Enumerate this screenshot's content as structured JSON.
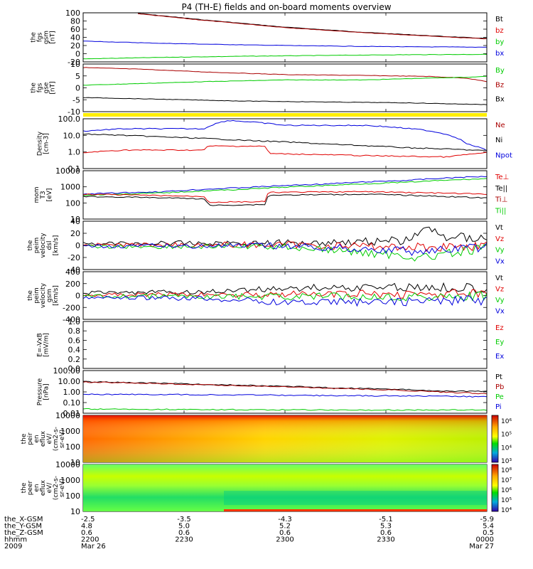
{
  "title": "P4 (TH-E) fields and on-board moments overview",
  "colors": {
    "red": "#e00000",
    "green": "#00cc00",
    "blue": "#0000dd",
    "black": "#000000",
    "yellow": "#ffee00",
    "darkred": "#aa0000"
  },
  "chart_data": [
    {
      "type": "line",
      "id": "fgs_gsm",
      "ylabel": [
        "the",
        "fgs",
        "gsm",
        "[nT]"
      ],
      "yticks": [
        "100",
        "80",
        "60",
        "40",
        "20",
        "0",
        "-20"
      ],
      "ylim": [
        -25,
        105
      ],
      "legend": [
        {
          "label": "Bt",
          "color": "black"
        },
        {
          "label": "bz",
          "color": "red"
        },
        {
          "label": "by",
          "color": "green"
        },
        {
          "label": "bx",
          "color": "blue"
        }
      ],
      "series": [
        {
          "color": "black",
          "x": [
            0.13,
            0.3,
            0.5,
            0.7,
            0.9,
            1.0
          ],
          "values": [
            104,
            86,
            67,
            53,
            42,
            37
          ]
        },
        {
          "color": "darkred",
          "x": [
            0.13,
            0.3,
            0.5,
            0.7,
            0.9,
            1.0
          ],
          "values": [
            103,
            85,
            66,
            52,
            41,
            36
          ]
        },
        {
          "color": "blue",
          "x": [
            0,
            0.2,
            0.4,
            0.6,
            0.8,
            1.0
          ],
          "values": [
            30,
            24,
            20,
            17,
            15,
            14
          ]
        },
        {
          "color": "green",
          "x": [
            0,
            0.2,
            0.4,
            0.6,
            0.8,
            1.0
          ],
          "values": [
            -17,
            -13,
            -10,
            -8,
            -6,
            -5
          ]
        }
      ]
    },
    {
      "type": "line",
      "id": "fgs_gse",
      "ylabel": [
        "the",
        "fgs",
        "gse",
        "[nT]"
      ],
      "yticks": [
        "10",
        "5",
        "0",
        "-5",
        "-10"
      ],
      "ylim": [
        -13,
        14
      ],
      "legend": [
        {
          "label": "By",
          "color": "green"
        },
        {
          "label": "Bz",
          "color": "darkred"
        },
        {
          "label": "Bx",
          "color": "black"
        }
      ],
      "series": [
        {
          "color": "darkred",
          "x": [
            0,
            0.15,
            0.3,
            0.5,
            0.7,
            0.85,
            0.95,
            1.0
          ],
          "values": [
            12,
            11,
            9.5,
            8,
            7.5,
            7,
            6,
            4
          ]
        },
        {
          "color": "green",
          "x": [
            0,
            0.15,
            0.3,
            0.5,
            0.7,
            0.85,
            0.95,
            1.0
          ],
          "values": [
            2,
            3,
            4,
            5,
            5,
            6,
            6.5,
            7
          ]
        },
        {
          "color": "black",
          "x": [
            0,
            0.2,
            0.4,
            0.6,
            0.8,
            1.0
          ],
          "values": [
            -5,
            -6,
            -7,
            -7.5,
            -8,
            -9
          ]
        }
      ]
    },
    {
      "type": "line",
      "id": "density",
      "scale": "log",
      "ylabel": [
        "Density",
        "[cm-3]"
      ],
      "yticks": [
        "100.0",
        "10.0",
        "1.0",
        "0.1"
      ],
      "ylim": [
        0.1,
        100
      ],
      "legend": [
        {
          "label": "Ne",
          "color": "darkred"
        },
        {
          "label": "Ni",
          "color": "black"
        },
        {
          "label": "Npot",
          "color": "blue"
        }
      ],
      "series": [
        {
          "color": "blue",
          "x": [
            0,
            0.1,
            0.3,
            0.36,
            0.5,
            0.7,
            0.85,
            0.95,
            1.0
          ],
          "values": [
            18,
            25,
            25,
            80,
            40,
            40,
            20,
            3,
            1.2
          ]
        },
        {
          "color": "black",
          "x": [
            0,
            0.2,
            0.4,
            0.6,
            0.8,
            1.0
          ],
          "values": [
            12,
            8,
            5,
            3,
            1.8,
            1.2
          ]
        },
        {
          "color": "red",
          "x": [
            0,
            0.1,
            0.3,
            0.31,
            0.45,
            0.46,
            0.7,
            0.9,
            1.0
          ],
          "values": [
            0.9,
            1.3,
            1.3,
            2.3,
            2.2,
            0.8,
            0.6,
            0.5,
            0.9
          ]
        }
      ]
    },
    {
      "type": "line",
      "id": "mom_temp",
      "scale": "log",
      "ylabel": [
        "mom",
        "T3",
        "[eV]"
      ],
      "yticks": [
        "10000",
        "1000",
        "100",
        "10"
      ],
      "ylim": [
        10,
        10000
      ],
      "legend": [
        {
          "label": "Te⊥",
          "color": "red"
        },
        {
          "label": "Te||",
          "color": "black"
        },
        {
          "label": "Ti⊥",
          "color": "darkred"
        },
        {
          "label": "Ti||",
          "color": "green"
        }
      ],
      "series": [
        {
          "color": "blue",
          "x": [
            0,
            0.2,
            0.4,
            0.6,
            0.8,
            1.0
          ],
          "values": [
            350,
            500,
            900,
            1500,
            2500,
            4500
          ]
        },
        {
          "color": "green",
          "x": [
            0,
            0.2,
            0.4,
            0.6,
            0.8,
            1.0
          ],
          "values": [
            300,
            420,
            700,
            1200,
            1900,
            3200
          ]
        },
        {
          "color": "red",
          "x": [
            0,
            0.15,
            0.3,
            0.31,
            0.45,
            0.46,
            0.7,
            0.9,
            1.0
          ],
          "values": [
            350,
            300,
            250,
            110,
            120,
            450,
            500,
            400,
            350
          ]
        },
        {
          "color": "black",
          "x": [
            0,
            0.15,
            0.3,
            0.31,
            0.45,
            0.46,
            0.7,
            0.9,
            1.0
          ],
          "values": [
            250,
            220,
            180,
            70,
            80,
            300,
            350,
            250,
            200
          ]
        }
      ]
    },
    {
      "type": "line",
      "id": "peim_dsl",
      "noise": true,
      "ylabel": [
        "the",
        "peim",
        "velocity",
        "dsl",
        "[km/s]"
      ],
      "yticks": [
        "40",
        "20",
        "0",
        "-20",
        "-40"
      ],
      "ylim": [
        -40,
        40
      ],
      "legend": [
        {
          "label": "Vt",
          "color": "black"
        },
        {
          "label": "Vz",
          "color": "red"
        },
        {
          "label": "Vy",
          "color": "green"
        },
        {
          "label": "Vx",
          "color": "blue"
        }
      ],
      "series": [
        {
          "color": "black",
          "x": [
            0,
            0.5,
            0.8,
            0.85,
            0.9,
            1.0
          ],
          "values": [
            3,
            4,
            8,
            28,
            14,
            12
          ]
        },
        {
          "color": "red",
          "x": [
            0,
            0.5,
            0.85,
            1.0
          ],
          "values": [
            1,
            1,
            -3,
            0
          ]
        },
        {
          "color": "green",
          "x": [
            0,
            0.5,
            0.85,
            1.0
          ],
          "values": [
            -2,
            -2,
            -20,
            -5
          ]
        },
        {
          "color": "blue",
          "x": [
            0,
            0.5,
            0.85,
            1.0
          ],
          "values": [
            -1,
            -1,
            -10,
            -3
          ]
        }
      ]
    },
    {
      "type": "line",
      "id": "peim_gsm",
      "noise": true,
      "ylabel": [
        "the",
        "peim",
        "velocity",
        "gsm",
        "[km/s]"
      ],
      "yticks": [
        "400",
        "200",
        "0",
        "-200",
        "-400"
      ],
      "ylim": [
        -420,
        420
      ],
      "legend": [
        {
          "label": "Vt",
          "color": "black"
        },
        {
          "label": "Vz",
          "color": "red"
        },
        {
          "label": "Vy",
          "color": "green"
        },
        {
          "label": "Vx",
          "color": "blue"
        }
      ],
      "series": [
        {
          "color": "black",
          "x": [
            0,
            0.3,
            0.5,
            0.75,
            1.0
          ],
          "values": [
            50,
            60,
            130,
            150,
            140
          ]
        },
        {
          "color": "red",
          "x": [
            0,
            0.5,
            1.0
          ],
          "values": [
            10,
            20,
            30
          ]
        },
        {
          "color": "green",
          "x": [
            0,
            0.5,
            1.0
          ],
          "values": [
            -10,
            -20,
            -15
          ]
        },
        {
          "color": "blue",
          "x": [
            0,
            0.3,
            0.5,
            0.75,
            1.0
          ],
          "values": [
            -40,
            -50,
            -120,
            -110,
            -80
          ]
        }
      ]
    },
    {
      "type": "line",
      "id": "efield",
      "ylabel": [
        "E=-VxB",
        "[mV/m]"
      ],
      "yticks": [
        "1.0",
        "0.8",
        "0.6",
        "0.4",
        "0.2",
        "0.0"
      ],
      "ylim": [
        0,
        1
      ],
      "legend": [
        {
          "label": "Ez",
          "color": "red"
        },
        {
          "label": "Ey",
          "color": "green"
        },
        {
          "label": "Ex",
          "color": "blue"
        }
      ],
      "series": []
    },
    {
      "type": "line",
      "id": "pressure",
      "scale": "log",
      "ylabel": [
        "Pressure",
        "[nPa]"
      ],
      "yticks": [
        "100.00",
        "10.00",
        "1.00",
        "0.10",
        "0.01"
      ],
      "ylim": [
        0.01,
        100
      ],
      "legend": [
        {
          "label": "Pt",
          "color": "black"
        },
        {
          "label": "Pb",
          "color": "darkred"
        },
        {
          "label": "Pe",
          "color": "green"
        },
        {
          "label": "Pi",
          "color": "blue"
        }
      ],
      "series": [
        {
          "color": "black",
          "x": [
            0,
            0.3,
            0.6,
            0.9,
            1.0
          ],
          "values": [
            9,
            5,
            2.5,
            1.2,
            1.1
          ]
        },
        {
          "color": "darkred",
          "x": [
            0,
            0.3,
            0.6,
            0.9,
            1.0
          ],
          "values": [
            8.5,
            4.5,
            2.2,
            0.9,
            0.7
          ]
        },
        {
          "color": "blue",
          "x": [
            0,
            0.3,
            0.6,
            0.9,
            1.0
          ],
          "values": [
            0.6,
            0.55,
            0.45,
            0.4,
            0.35
          ]
        },
        {
          "color": "green",
          "x": [
            0,
            0.3,
            0.6,
            0.9,
            1.0
          ],
          "values": [
            0.025,
            0.022,
            0.02,
            0.02,
            0.02
          ]
        }
      ]
    },
    {
      "type": "heatmap",
      "id": "peir_spec",
      "ylabel": [
        "the",
        "peir",
        "en",
        "eflux",
        "eV/",
        "(cm2-s-",
        "sr-eV)"
      ],
      "yticks": [
        "10000",
        "1000",
        "100",
        "10"
      ],
      "colorbar": [
        "10⁶",
        "10⁵",
        "10⁴",
        "10³"
      ]
    },
    {
      "type": "heatmap",
      "id": "peer_spec",
      "ylabel": [
        "the",
        "peer",
        "en",
        "eflux",
        "eV/",
        "(cm2-s-",
        "sr-eV)"
      ],
      "yticks": [
        "10000",
        "1000",
        "100",
        "10"
      ],
      "colorbar": [
        "10⁸",
        "10⁷",
        "10⁶",
        "10⁵",
        "10⁴"
      ]
    }
  ],
  "xaxis": {
    "rows": [
      {
        "label": "the_X-GSM",
        "values": [
          "-2.5",
          "-3.5",
          "-4.3",
          "-5.1",
          "-5.9"
        ]
      },
      {
        "label": "the_Y-GSM",
        "values": [
          "4.8",
          "5.0",
          "5.2",
          "5.3",
          "5.4"
        ]
      },
      {
        "label": "the_Z-GSM",
        "values": [
          "0.6",
          "0.6",
          "0.6",
          "0.6",
          "0.5"
        ]
      },
      {
        "label": "hhmm",
        "values": [
          "2200",
          "2230",
          "2300",
          "2330",
          "0000"
        ]
      },
      {
        "label": "2009",
        "values": [
          "Mar 26",
          "",
          "",
          "",
          "Mar 27"
        ]
      }
    ]
  }
}
